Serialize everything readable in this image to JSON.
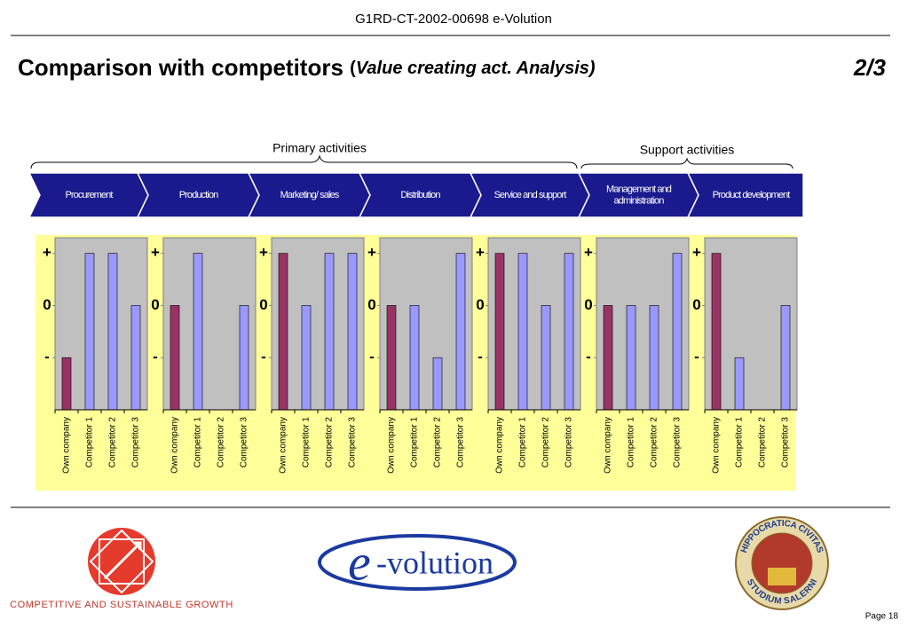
{
  "header": {
    "code": "G1RD-CT-2002-00698 e-Volution",
    "title": "Comparison with competitors",
    "title_paren": "(",
    "title_italic": "Value creating act. Analysis)",
    "page_part": "2/3"
  },
  "groups": {
    "primary": "Primary activities",
    "support": "Support activities"
  },
  "activities": [
    [
      "Procurement"
    ],
    [
      "Production"
    ],
    [
      "Marketing/        sales"
    ],
    [
      "Distribution"
    ],
    [
      "Service and support"
    ],
    [
      "Management and",
      "administration"
    ],
    [
      "Product development"
    ]
  ],
  "chart_data": [
    {
      "type": "bar",
      "categories": [
        "Own company",
        "Competitor 1",
        "Competitor 2",
        "Competitor 3"
      ],
      "values": [
        -1,
        1,
        1,
        0
      ],
      "colors": [
        "#993366",
        "#9999ff",
        "#9999ff",
        "#9999ff"
      ],
      "ylim": [
        -2,
        1.3
      ],
      "yticks": [
        {
          "value": 1,
          "label": "+"
        },
        0,
        {
          "value": -1,
          "label": "-"
        }
      ]
    },
    {
      "type": "bar",
      "categories": [
        "Own company",
        "Competitor 1",
        "Competitor 2",
        "Competitor 3"
      ],
      "values": [
        0,
        1,
        null,
        0
      ],
      "colors": [
        "#993366",
        "#9999ff",
        "#9999ff",
        "#9999ff"
      ],
      "ylim": [
        -2,
        1.3
      ],
      "yticks": [
        {
          "value": 1,
          "label": "+"
        },
        0,
        {
          "value": -1,
          "label": "-"
        }
      ]
    },
    {
      "type": "bar",
      "categories": [
        "Own company",
        "Competitor 1",
        "Competitor 2",
        "Competitor 3"
      ],
      "values": [
        1,
        0,
        1,
        1
      ],
      "colors": [
        "#993366",
        "#9999ff",
        "#9999ff",
        "#9999ff"
      ],
      "ylim": [
        -2,
        1.3
      ],
      "yticks": [
        {
          "value": 1,
          "label": "+"
        },
        0,
        {
          "value": -1,
          "label": "-"
        }
      ]
    },
    {
      "type": "bar",
      "categories": [
        "Own company",
        "Competitor 1",
        "Competitor 2",
        "Competitor 3"
      ],
      "values": [
        0,
        0,
        -1,
        1
      ],
      "colors": [
        "#993366",
        "#9999ff",
        "#9999ff",
        "#9999ff"
      ],
      "ylim": [
        -2,
        1.3
      ],
      "yticks": [
        {
          "value": 1,
          "label": "+"
        },
        0,
        {
          "value": -1,
          "label": "-"
        }
      ]
    },
    {
      "type": "bar",
      "categories": [
        "Own company",
        "Competitor 1",
        "Competitor 2",
        "Competitor 3"
      ],
      "values": [
        1,
        1,
        0,
        1
      ],
      "colors": [
        "#993366",
        "#9999ff",
        "#9999ff",
        "#9999ff"
      ],
      "ylim": [
        -2,
        1.3
      ],
      "yticks": [
        {
          "value": 1,
          "label": "+"
        },
        0,
        {
          "value": -1,
          "label": "-"
        }
      ]
    },
    {
      "type": "bar",
      "categories": [
        "Own company",
        "Competitor 1",
        "Competitor 2",
        "Competitor 3"
      ],
      "values": [
        0,
        0,
        0,
        1
      ],
      "colors": [
        "#993366",
        "#9999ff",
        "#9999ff",
        "#9999ff"
      ],
      "ylim": [
        -2,
        1.3
      ],
      "yticks": [
        {
          "value": 1,
          "label": "+"
        },
        0,
        {
          "value": -1,
          "label": "-"
        }
      ]
    },
    {
      "type": "bar",
      "categories": [
        "Own company",
        "Competitor 1",
        "Competitor 2",
        "Competitor 3"
      ],
      "values": [
        1,
        -1,
        null,
        0
      ],
      "colors": [
        "#993366",
        "#9999ff",
        "#9999ff",
        "#9999ff"
      ],
      "ylim": [
        -2,
        1.3
      ],
      "yticks": [
        {
          "value": 1,
          "label": "+"
        },
        0,
        {
          "value": -1,
          "label": "-"
        }
      ]
    }
  ],
  "footer": {
    "left_logo": "COMPETITIVE AND SUSTAINABLE GROWTH",
    "center_logo_e": "e",
    "center_logo": "-volution",
    "seal_top": "HIPPOCRATICA CIVITAS",
    "seal_bottom": "STUDIUM SALERNI",
    "page": "Page 18"
  }
}
